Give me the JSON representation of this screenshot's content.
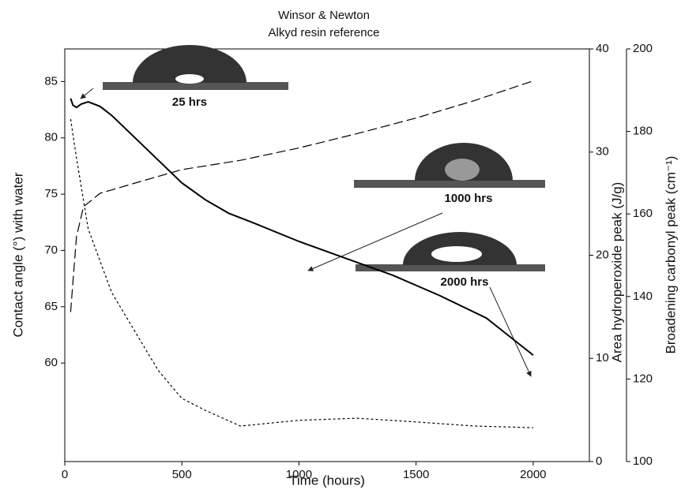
{
  "chart_data": {
    "type": "line",
    "title": [
      "Winsor & Newton",
      "Alkyd resin reference"
    ],
    "x_label": "Time (hours)",
    "y_label": "Contact angle (°) with water",
    "y2_label": "Area hydroperoxide peak (J/g)",
    "y3_label": "Broadening carbonyl peak (cm⁻¹)",
    "xlim": [
      0,
      2240
    ],
    "xticks": [
      0,
      500,
      1000,
      1500,
      2000
    ],
    "ylim": [
      51.25,
      87.9
    ],
    "yticks": [
      60,
      65,
      70,
      75,
      80,
      85
    ],
    "y2lim": [
      0,
      40
    ],
    "y2ticks": [
      0,
      10,
      20,
      30,
      40
    ],
    "y3lim": [
      100,
      200
    ],
    "y3ticks": [
      100,
      120,
      140,
      160,
      180,
      200
    ],
    "series": [
      {
        "color": "#000000",
        "line_style": "solid",
        "axis": "y",
        "x": [
          25,
          35,
          50,
          70,
          100,
          150,
          200,
          300,
          400,
          500,
          600,
          700,
          800,
          1000,
          1200,
          1400,
          1600,
          1800,
          2000
        ],
        "values": [
          83.5,
          82.9,
          82.7,
          83.0,
          83.2,
          82.8,
          82.0,
          80.0,
          78.0,
          76.0,
          74.5,
          73.3,
          72.5,
          70.8,
          69.3,
          67.8,
          66.0,
          64.0,
          60.7
        ]
      },
      {
        "color": "#000000",
        "line_style": "dashed",
        "axis": "y2",
        "x": [
          25,
          35,
          50,
          80,
          150,
          300,
          500,
          750,
          1000,
          1250,
          1500,
          1750,
          2000
        ],
        "values": [
          14.5,
          17.5,
          21.8,
          24.7,
          26.0,
          27.0,
          28.3,
          29.2,
          30.4,
          31.8,
          33.3,
          35.0,
          36.9
        ]
      },
      {
        "color": "#000000",
        "line_style": "dotted",
        "axis": "y3",
        "x": [
          25,
          50,
          100,
          200,
          300,
          400,
          500,
          600,
          750,
          1000,
          1250,
          1500,
          1750,
          2000
        ],
        "values": [
          183,
          173.6,
          156.4,
          141,
          131.5,
          122,
          115.3,
          112.4,
          108.6,
          110,
          110.5,
          109.6,
          108.6,
          108.2
        ]
      }
    ],
    "annotations": [
      "25 hrs",
      "1000 hrs",
      "2000 hrs"
    ]
  }
}
